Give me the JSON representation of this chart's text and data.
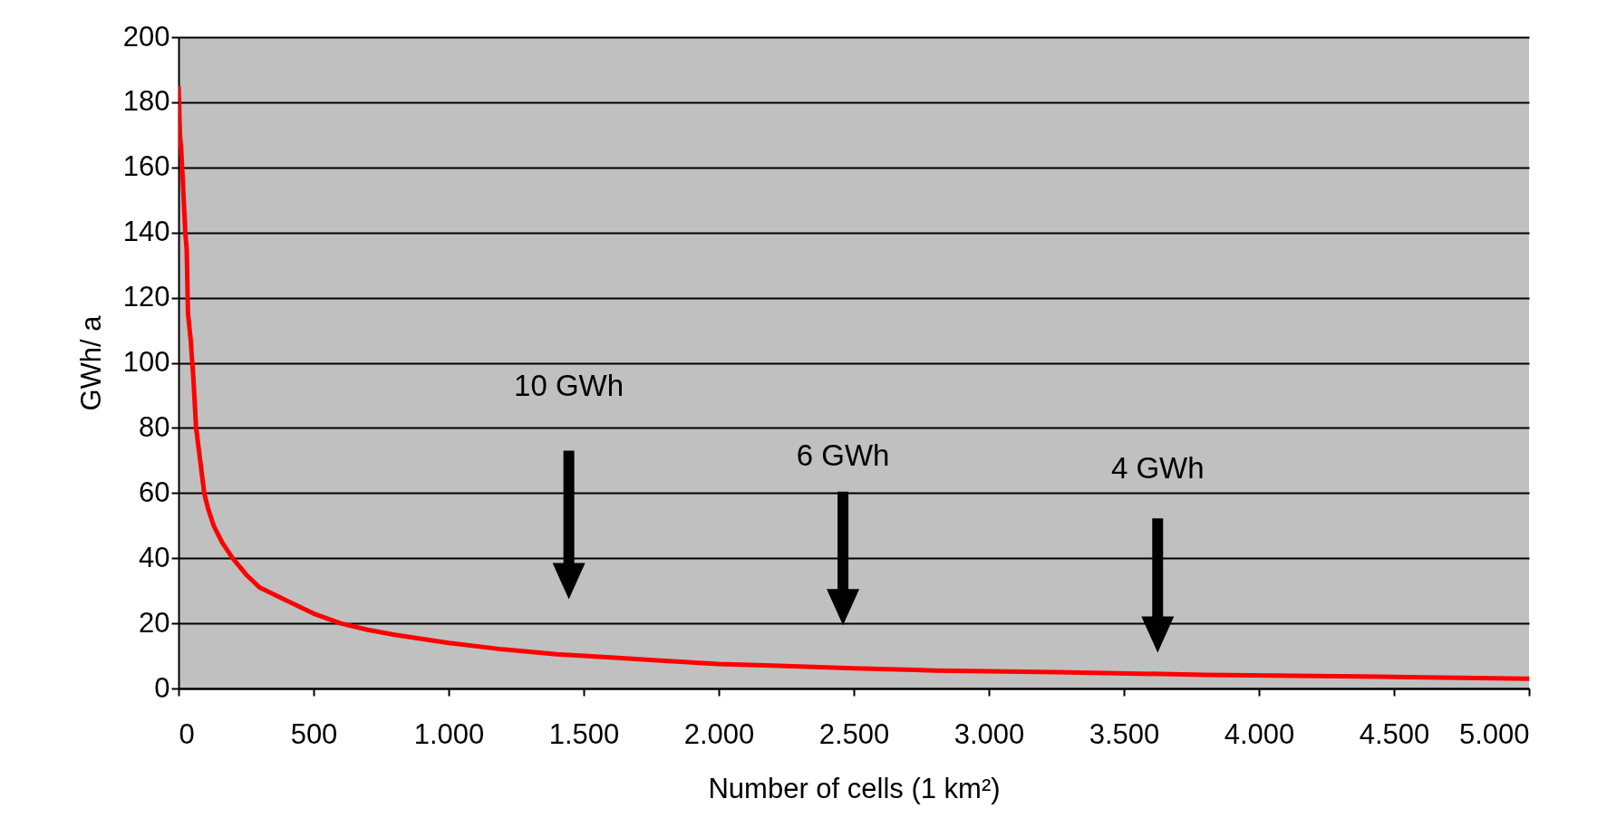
{
  "chart_data": {
    "type": "line",
    "xlabel": "Number of cells (1 km²)",
    "ylabel": "GWh/ a",
    "x": [
      0,
      5,
      10,
      15,
      25,
      30,
      35,
      45,
      55,
      65,
      80,
      95,
      110,
      130,
      160,
      200,
      250,
      300,
      400,
      500,
      600,
      700,
      800,
      1000,
      1200,
      1400,
      1600,
      1800,
      2000,
      2200,
      2500,
      2800,
      3250,
      3800,
      4550,
      5000
    ],
    "series": [
      {
        "color": "#ff0000",
        "values": [
          185,
          170,
          165,
          157,
          140,
          135,
          115,
          107,
          95,
          80,
          70,
          60,
          55,
          50,
          45,
          40,
          35,
          31,
          27,
          23,
          20,
          18,
          16.5,
          14,
          12,
          10.5,
          9.5,
          8.5,
          7.5,
          7,
          6.2,
          5.5,
          5,
          4.2,
          3.5,
          3
        ]
      }
    ],
    "xlim": [
      0,
      5000
    ],
    "xticks": [
      0,
      500,
      {
        "value": 1000,
        "label": "1.000"
      },
      {
        "value": 1500,
        "label": "1.500"
      },
      {
        "value": 2000,
        "label": "2.000"
      },
      {
        "value": 2500,
        "label": "2.500"
      },
      {
        "value": 3000,
        "label": "3.000"
      },
      {
        "value": 3500,
        "label": "3.500"
      },
      {
        "value": 4000,
        "label": "4.000"
      },
      {
        "value": 4500,
        "label": "4.500"
      },
      {
        "value": 5000,
        "label": "5.000"
      }
    ],
    "ylim": [
      0,
      200
    ],
    "yticks": [
      0,
      20,
      40,
      60,
      80,
      100,
      120,
      140,
      160,
      180,
      200
    ],
    "grid": "y",
    "marker": "none",
    "line_style": "solid",
    "annotations": [
      "10 GWh",
      "6 GWh",
      "4 GWh"
    ]
  }
}
